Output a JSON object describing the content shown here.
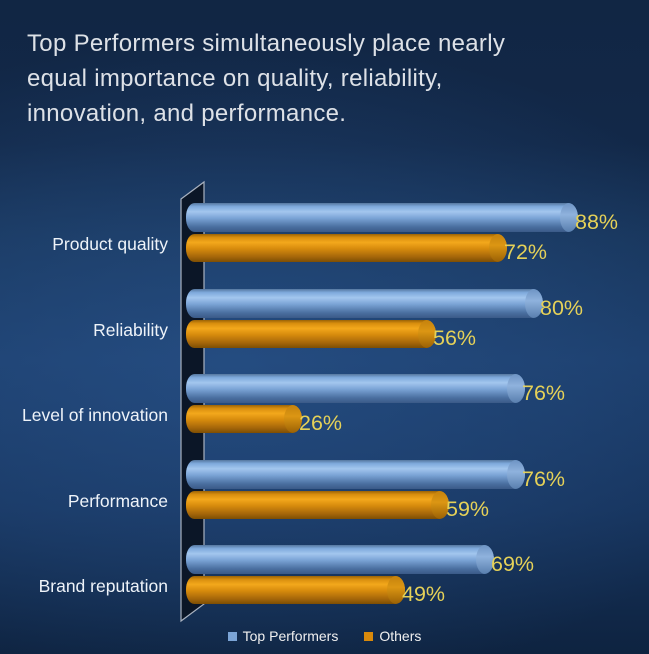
{
  "chart_data": {
    "type": "bar",
    "orientation": "horizontal",
    "title": "Top Performers simultaneously place nearly\nequal importance on quality, reliability,\ninnovation, and performance.",
    "categories": [
      "Product quality",
      "Reliability",
      "Level of innovation",
      "Performance",
      "Brand reputation"
    ],
    "series": [
      {
        "name": "Top Performers",
        "color": "#7ba4d6",
        "values": [
          88,
          80,
          76,
          76,
          69
        ]
      },
      {
        "name": "Others",
        "color": "#d8890b",
        "values": [
          72,
          56,
          26,
          59,
          49
        ]
      }
    ],
    "value_suffix": "%",
    "xlim": [
      0,
      100
    ],
    "grid": false,
    "legend_position": "bottom",
    "style": "3d-cylinder-bars"
  },
  "colors": {
    "background_top": "#122848",
    "background_mid": "#1b3c69",
    "background_bottom": "#0e2340",
    "title_text": "#dde1e7",
    "category_text": "#eef3f9",
    "value_label_text": "#e5d158",
    "legend_text": "#f0f0f0",
    "wall_fill": "#0b1627",
    "wall_stroke": "#a9b2c0"
  }
}
